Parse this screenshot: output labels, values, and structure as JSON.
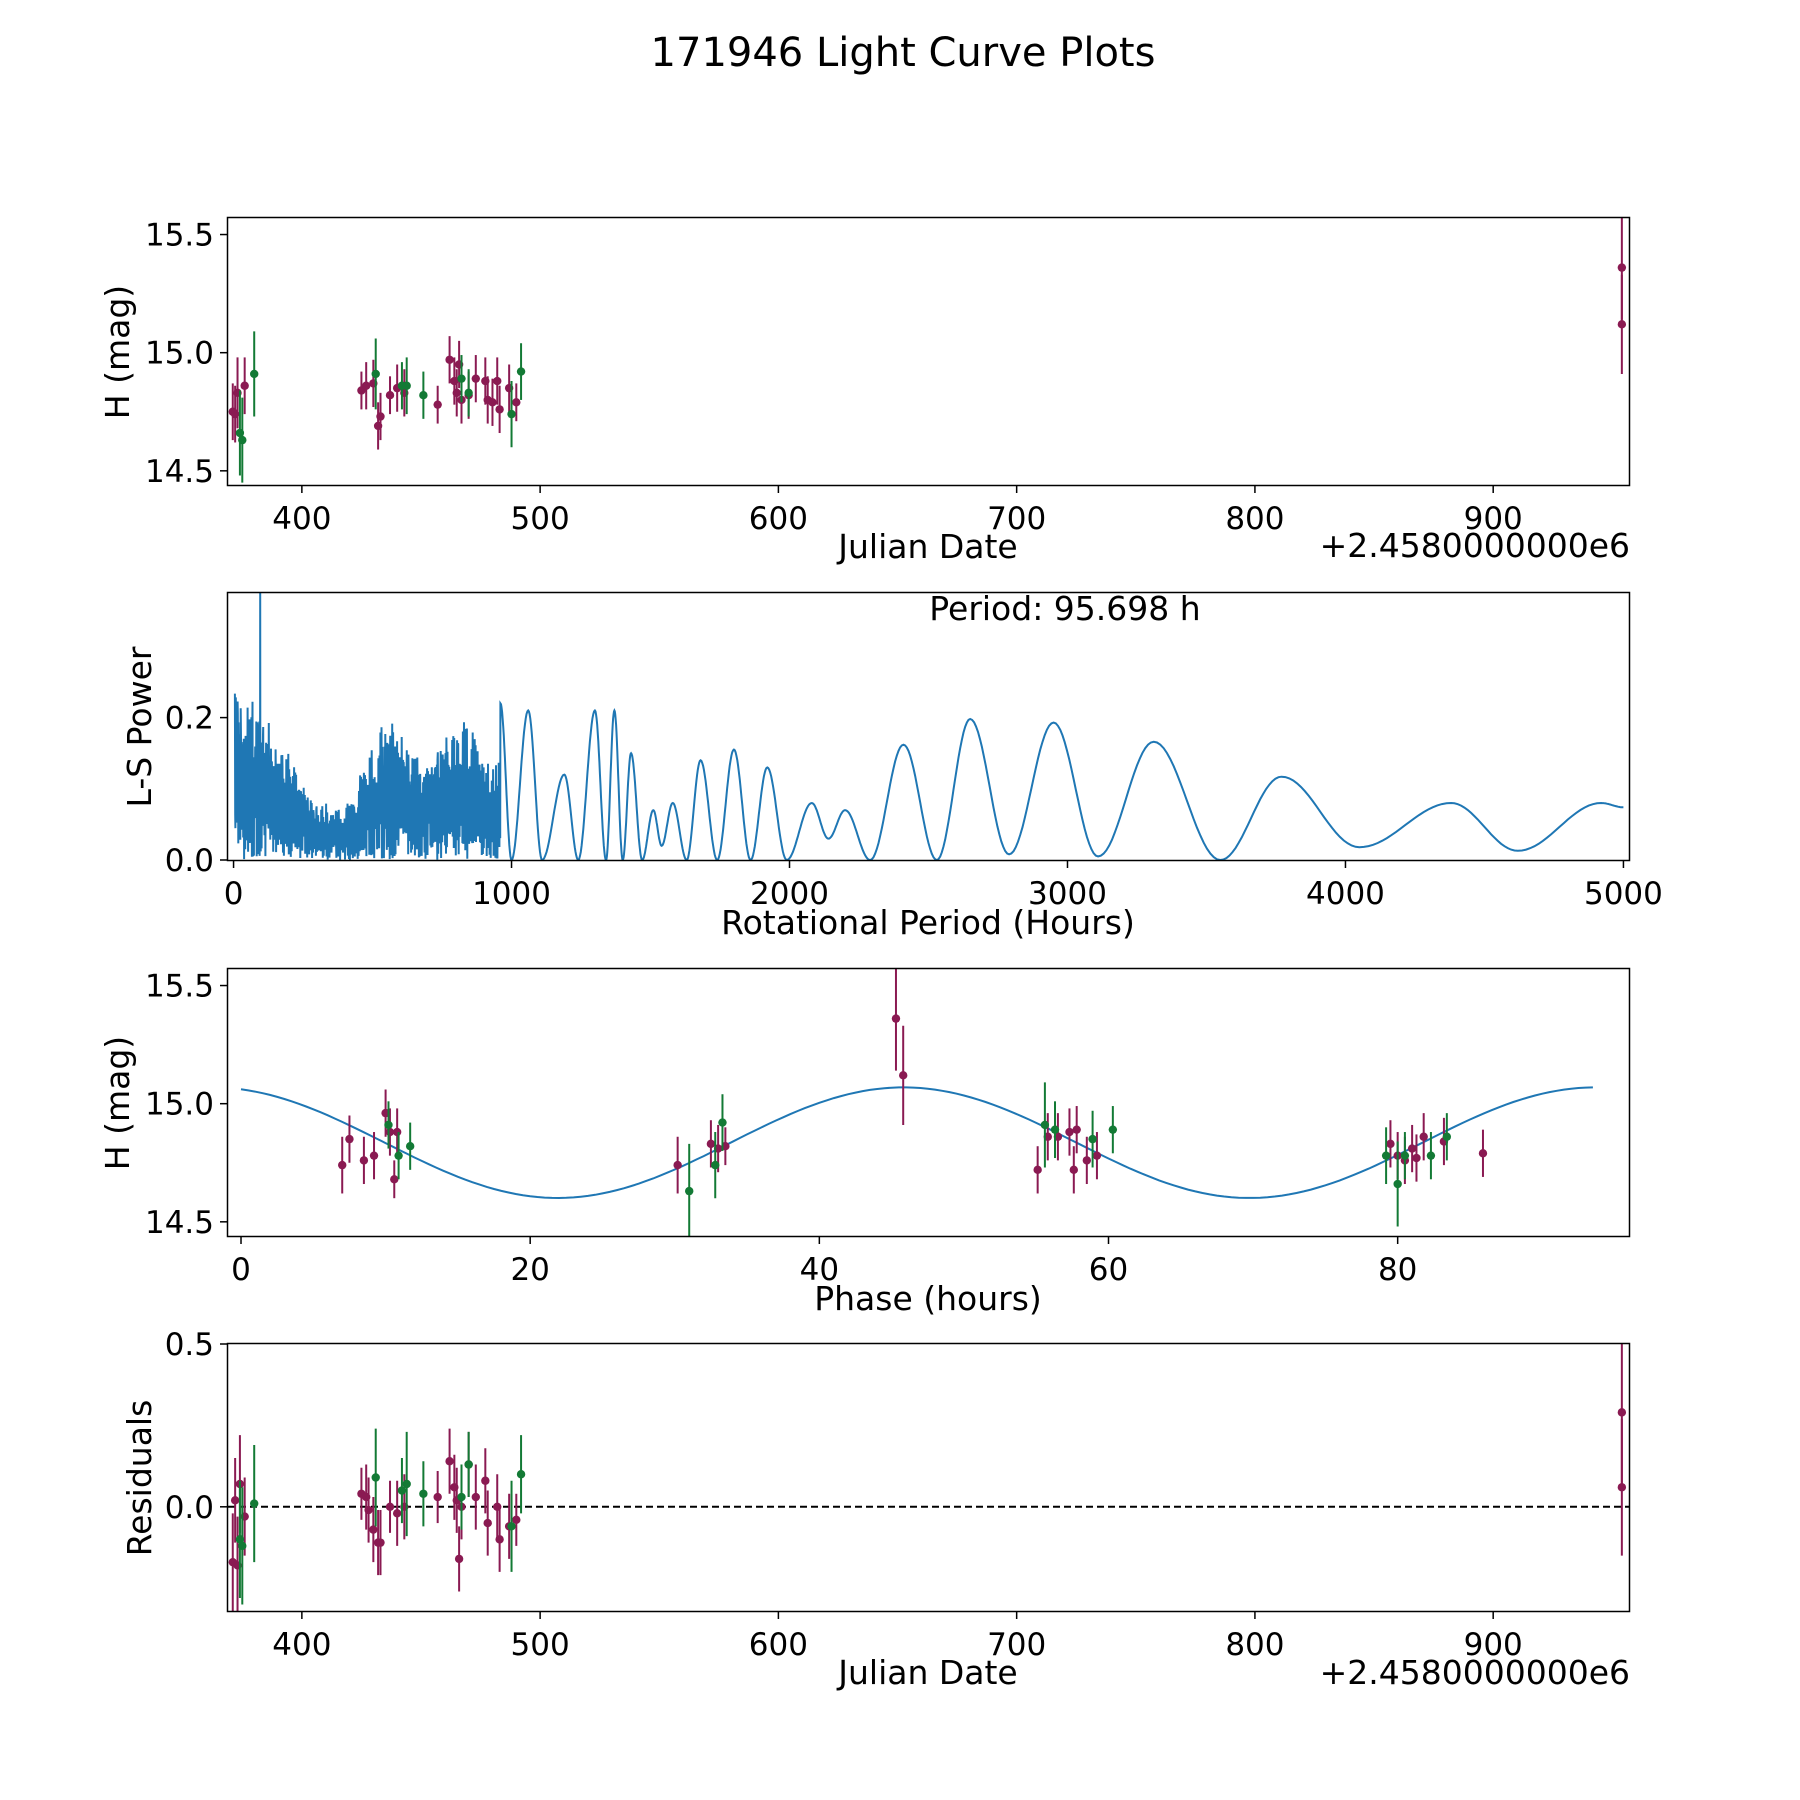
{
  "figure_title": "171946 Light Curve Plots",
  "colors": {
    "magenta": "#8a1a52",
    "green": "#137a35",
    "curve": "#1f77b4",
    "dashed": "#000000"
  },
  "chart_data": [
    {
      "type": "scatter",
      "name": "light-curve",
      "xlabel": "Julian Date",
      "ylabel": "H (mag)",
      "offset_label": "+2.4580000000e6",
      "xlim": [
        369,
        957
      ],
      "ylim": [
        14.44,
        15.57
      ],
      "xticks": [
        "400",
        "500",
        "600",
        "700",
        "800",
        "900"
      ],
      "yticks": [
        "14.5",
        "15.0",
        "15.5"
      ],
      "series": [
        {
          "name": "magenta",
          "color": "#8a1a52",
          "x": [
            371,
            372,
            373,
            376,
            425,
            427,
            430,
            432,
            433,
            437,
            440,
            443,
            457,
            462,
            464,
            465,
            466,
            467,
            470,
            473,
            477,
            478,
            480,
            482,
            483,
            487,
            490,
            954,
            954
          ],
          "y": [
            14.75,
            14.74,
            14.83,
            14.86,
            14.84,
            14.86,
            14.87,
            14.69,
            14.73,
            14.82,
            14.85,
            14.83,
            14.78,
            14.97,
            14.88,
            14.83,
            14.95,
            14.8,
            14.82,
            14.89,
            14.88,
            14.8,
            14.79,
            14.88,
            14.76,
            14.85,
            14.79,
            15.36,
            15.12
          ],
          "err": [
            0.12,
            0.12,
            0.15,
            0.12,
            0.08,
            0.1,
            0.1,
            0.1,
            0.1,
            0.08,
            0.1,
            0.1,
            0.08,
            0.1,
            0.1,
            0.1,
            0.1,
            0.1,
            0.1,
            0.1,
            0.1,
            0.1,
            0.1,
            0.1,
            0.1,
            0.1,
            0.08,
            0.22,
            0.21
          ]
        },
        {
          "name": "green",
          "color": "#137a35",
          "x": [
            374,
            375,
            380,
            431,
            442,
            444,
            451,
            467,
            470,
            488,
            492
          ],
          "y": [
            14.66,
            14.63,
            14.91,
            14.91,
            14.86,
            14.86,
            14.82,
            14.89,
            14.83,
            14.74,
            14.92
          ],
          "err": [
            0.18,
            0.18,
            0.18,
            0.15,
            0.1,
            0.12,
            0.1,
            0.1,
            0.1,
            0.14,
            0.12
          ]
        }
      ]
    },
    {
      "type": "line",
      "name": "periodogram",
      "xlabel": "Rotational Period (Hours)",
      "ylabel": "L-S Power",
      "annotation": "Period: 95.698 h",
      "xlim": [
        -20,
        5020
      ],
      "ylim": [
        0,
        0.375
      ],
      "xticks": [
        "0",
        "1000",
        "2000",
        "3000",
        "4000",
        "5000"
      ],
      "yticks": [
        "0.0",
        "0.2"
      ],
      "peak_period": 95.698,
      "peak_power": 0.38,
      "maxima": [
        [
          960,
          0.22
        ],
        [
          1060,
          0.21
        ],
        [
          1190,
          0.12
        ],
        [
          1300,
          0.21
        ],
        [
          1370,
          0.21
        ],
        [
          1430,
          0.15
        ],
        [
          1510,
          0.07
        ],
        [
          1580,
          0.08
        ],
        [
          1680,
          0.14
        ],
        [
          1800,
          0.155
        ],
        [
          1920,
          0.13
        ],
        [
          2080,
          0.08
        ],
        [
          2200,
          0.07
        ],
        [
          2410,
          0.162
        ],
        [
          2650,
          0.198
        ],
        [
          2950,
          0.193
        ],
        [
          3310,
          0.166
        ],
        [
          3770,
          0.117
        ],
        [
          4380,
          0.08
        ],
        [
          4920,
          0.08
        ]
      ],
      "minima": [
        [
          1000,
          0.0
        ],
        [
          1110,
          0.0
        ],
        [
          1240,
          0.0
        ],
        [
          1340,
          0.0
        ],
        [
          1400,
          0.0
        ],
        [
          1470,
          0.0
        ],
        [
          1540,
          0.02
        ],
        [
          1630,
          0.0
        ],
        [
          1740,
          0.0
        ],
        [
          1860,
          0.0
        ],
        [
          1990,
          0.0
        ],
        [
          2140,
          0.03
        ],
        [
          2290,
          0.0
        ],
        [
          2530,
          0.0
        ],
        [
          2790,
          0.008
        ],
        [
          3110,
          0.005
        ],
        [
          3550,
          0.0
        ],
        [
          4050,
          0.018
        ],
        [
          4620,
          0.013
        ],
        [
          5000,
          0.074
        ]
      ]
    },
    {
      "type": "scatter",
      "name": "phase-fold",
      "xlabel": "Phase (hours)",
      "ylabel": "H (mag)",
      "xlim": [
        -0.9,
        96
      ],
      "ylim": [
        14.44,
        15.57
      ],
      "xticks": [
        "0",
        "20",
        "40",
        "60",
        "80"
      ],
      "yticks": [
        "14.5",
        "15.0",
        "15.5"
      ],
      "fit": {
        "mean": 14.835,
        "amplitude": 0.234,
        "period": 47.85,
        "min_phase": 21.9
      },
      "series": [
        {
          "name": "magenta",
          "color": "#8a1a52",
          "x": [
            7.0,
            7.5,
            8.5,
            9.2,
            10.0,
            10.3,
            10.6,
            10.8,
            30.2,
            32.5,
            33.0,
            33.5,
            45.3,
            45.8,
            55.1,
            55.8,
            56.5,
            57.3,
            57.6,
            57.8,
            58.5,
            59.2,
            79.5,
            80.0,
            80.5,
            81.0,
            81.3,
            81.8,
            83.2,
            85.9
          ],
          "y": [
            14.74,
            14.85,
            14.76,
            14.78,
            14.96,
            14.88,
            14.68,
            14.88,
            14.74,
            14.83,
            14.81,
            14.82,
            15.36,
            15.12,
            14.72,
            14.86,
            14.86,
            14.88,
            14.72,
            14.89,
            14.76,
            14.78,
            14.83,
            14.78,
            14.76,
            14.81,
            14.77,
            14.86,
            14.84,
            14.79
          ],
          "err": [
            0.12,
            0.1,
            0.1,
            0.1,
            0.1,
            0.1,
            0.08,
            0.1,
            0.12,
            0.1,
            0.1,
            0.08,
            0.22,
            0.21,
            0.1,
            0.1,
            0.1,
            0.1,
            0.1,
            0.1,
            0.1,
            0.1,
            0.1,
            0.1,
            0.1,
            0.1,
            0.1,
            0.1,
            0.1,
            0.1
          ]
        },
        {
          "name": "green",
          "color": "#137a35",
          "x": [
            10.2,
            10.9,
            11.7,
            31.0,
            32.8,
            33.3,
            55.6,
            56.3,
            58.9,
            60.3,
            79.2,
            80.0,
            80.5,
            82.3,
            83.4
          ],
          "y": [
            14.91,
            14.78,
            14.82,
            14.63,
            14.74,
            14.92,
            14.91,
            14.89,
            14.85,
            14.89,
            14.78,
            14.66,
            14.78,
            14.78,
            14.86
          ],
          "err": [
            0.1,
            0.1,
            0.1,
            0.2,
            0.14,
            0.12,
            0.18,
            0.12,
            0.12,
            0.1,
            0.12,
            0.18,
            0.1,
            0.1,
            0.1
          ]
        }
      ]
    },
    {
      "type": "scatter",
      "name": "residuals",
      "xlabel": "Julian Date",
      "ylabel": "Residuals",
      "offset_label": "+2.4580000000e6",
      "xlim": [
        369,
        957
      ],
      "ylim": [
        -0.32,
        0.5
      ],
      "xticks": [
        "400",
        "500",
        "600",
        "700",
        "800",
        "900"
      ],
      "yticks": [
        "0.0",
        "0.5"
      ],
      "zero_line": 0,
      "series": [
        {
          "name": "magenta",
          "color": "#8a1a52",
          "x": [
            371,
            372,
            373,
            374,
            376,
            425,
            427,
            428,
            430,
            432,
            433,
            437,
            440,
            443,
            457,
            462,
            464,
            465,
            466,
            467,
            470,
            473,
            477,
            478,
            482,
            483,
            487,
            490,
            954,
            954
          ],
          "y": [
            -0.17,
            0.02,
            -0.18,
            0.07,
            -0.03,
            0.04,
            0.03,
            -0.01,
            -0.07,
            -0.11,
            -0.11,
            0.0,
            -0.02,
            0.0,
            0.03,
            0.14,
            0.06,
            0.02,
            -0.16,
            0.0,
            0.13,
            0.03,
            0.08,
            -0.05,
            0.0,
            -0.1,
            -0.06,
            -0.04,
            0.29,
            0.06
          ],
          "err": [
            0.15,
            0.13,
            0.15,
            0.15,
            0.12,
            0.08,
            0.1,
            0.1,
            0.1,
            0.1,
            0.1,
            0.08,
            0.1,
            0.1,
            0.08,
            0.1,
            0.1,
            0.1,
            0.1,
            0.1,
            0.1,
            0.1,
            0.1,
            0.1,
            0.1,
            0.1,
            0.1,
            0.08,
            0.22,
            0.21
          ]
        },
        {
          "name": "green",
          "color": "#137a35",
          "x": [
            374,
            375,
            380,
            431,
            442,
            444,
            451,
            467,
            470,
            488,
            492
          ],
          "y": [
            -0.1,
            -0.12,
            0.01,
            0.09,
            0.05,
            0.07,
            0.04,
            0.03,
            0.13,
            -0.06,
            0.1
          ],
          "err": [
            0.18,
            0.18,
            0.18,
            0.15,
            0.1,
            0.16,
            0.1,
            0.1,
            0.1,
            0.14,
            0.12
          ]
        }
      ]
    }
  ]
}
